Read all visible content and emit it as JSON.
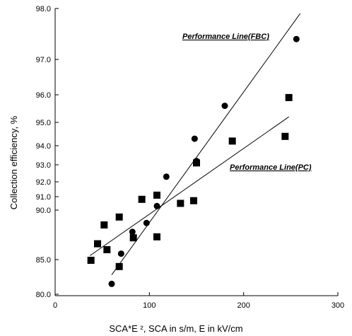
{
  "chart_data": {
    "type": "scatter",
    "xlabel": "SCA*E ², SCA in s/m, E in kV/cm",
    "ylabel": "Collection efficiency, %",
    "xlim": [
      0,
      300
    ],
    "x_ticks": [
      "0",
      "100",
      "200",
      "300"
    ],
    "y_tick_labels": [
      "80.0",
      "85.0",
      "90.0",
      "91.0",
      "92.0",
      "93.0",
      "94.0",
      "95.0",
      "96.0",
      "97.0",
      "98.0"
    ],
    "grid": false,
    "series": [
      {
        "marker": "circle",
        "color": "#000000",
        "points": [
          [
            60,
            81.5
          ],
          [
            70,
            85.6
          ],
          [
            82,
            87.8
          ],
          [
            97,
            88.7
          ],
          [
            108,
            90.3
          ],
          [
            118,
            92.3
          ],
          [
            148,
            94.3
          ],
          [
            150,
            93.2
          ],
          [
            180,
            95.6
          ],
          [
            256,
            97.4
          ]
        ]
      },
      {
        "marker": "square",
        "color": "#000000",
        "points": [
          [
            38,
            84.9
          ],
          [
            45,
            86.6
          ],
          [
            52,
            88.5
          ],
          [
            55,
            86.0
          ],
          [
            68,
            84.0
          ],
          [
            68,
            89.3
          ],
          [
            83,
            87.2
          ],
          [
            92,
            90.8
          ],
          [
            108,
            87.3
          ],
          [
            108,
            91.1
          ],
          [
            133,
            90.5
          ],
          [
            147,
            90.7
          ],
          [
            150,
            93.1
          ],
          [
            188,
            94.2
          ],
          [
            244,
            94.4
          ],
          [
            248,
            95.9
          ]
        ]
      }
    ],
    "lines": [
      {
        "label": "Performance Line(FBC)",
        "from": [
          60,
          82.8
        ],
        "to": [
          260,
          97.9
        ]
      },
      {
        "label": "Performance Line(PC)",
        "from": [
          37,
          85.4
        ],
        "to": [
          248,
          95.2
        ]
      }
    ]
  }
}
